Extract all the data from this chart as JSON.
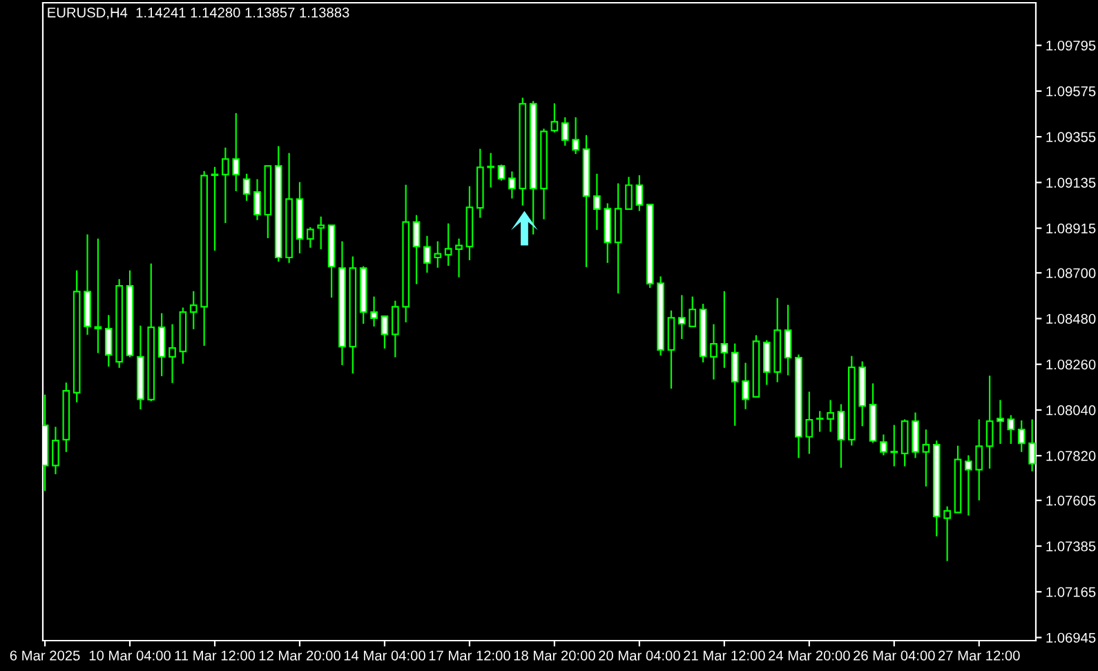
{
  "chart_data": {
    "type": "candlestick",
    "title": "EURUSD,H4  1.14241 1.14280 1.13857 1.13883",
    "categories": [
      "6 Mar 2025",
      null,
      null,
      null,
      null,
      null,
      null,
      null,
      "10 Mar 04:00",
      null,
      null,
      null,
      null,
      null,
      null,
      null,
      "11 Mar 12:00",
      null,
      null,
      null,
      null,
      null,
      null,
      null,
      "12 Mar 20:00",
      null,
      null,
      null,
      null,
      null,
      null,
      null,
      "14 Mar 04:00",
      null,
      null,
      null,
      null,
      null,
      null,
      null,
      "17 Mar 12:00",
      null,
      null,
      null,
      null,
      null,
      null,
      null,
      "18 Mar 20:00",
      null,
      null,
      null,
      null,
      null,
      null,
      null,
      "20 Mar 04:00",
      null,
      null,
      null,
      null,
      null,
      null,
      null,
      "21 Mar 12:00",
      null,
      null,
      null,
      null,
      null,
      null,
      null,
      "24 Mar 20:00",
      null,
      null,
      null,
      null,
      null,
      null,
      null,
      "26 Mar 04:00",
      null,
      null,
      null,
      null,
      null,
      null,
      null,
      "27 Mar 12:00",
      null,
      null,
      null,
      null,
      null
    ],
    "ohlc": [
      [
        1.07966,
        1.08114,
        1.07651,
        1.07773
      ],
      [
        1.07773,
        1.07959,
        1.07731,
        1.07893
      ],
      [
        1.07897,
        1.08172,
        1.07838,
        1.08132
      ],
      [
        1.08123,
        1.08712,
        1.08077,
        1.0861
      ],
      [
        1.0861,
        1.08885,
        1.08402,
        1.08442
      ],
      [
        1.08432,
        1.08865,
        1.08314,
        1.0844
      ],
      [
        1.08431,
        1.08497,
        1.08249,
        1.08305
      ],
      [
        1.08272,
        1.0867,
        1.08243,
        1.08637
      ],
      [
        1.08637,
        1.08712,
        1.08294,
        1.08303
      ],
      [
        1.08296,
        1.08446,
        1.08043,
        1.08092
      ],
      [
        1.0809,
        1.08745,
        1.08083,
        1.08438
      ],
      [
        1.08438,
        1.08506,
        1.08203,
        1.08296
      ],
      [
        1.08296,
        1.08453,
        1.0817,
        1.08338
      ],
      [
        1.08322,
        1.08533,
        1.08263,
        1.08511
      ],
      [
        1.08511,
        1.08612,
        1.08429,
        1.08544
      ],
      [
        1.08537,
        1.0919,
        1.08349,
        1.09168
      ],
      [
        1.0917,
        1.0921,
        1.08807,
        1.09174
      ],
      [
        1.09173,
        1.09303,
        1.0894,
        1.09248
      ],
      [
        1.09248,
        1.09469,
        1.09093,
        1.09173
      ],
      [
        1.09151,
        1.09177,
        1.09047,
        1.0908
      ],
      [
        1.09089,
        1.09151,
        1.08954,
        1.0898
      ],
      [
        1.0898,
        1.09215,
        1.08867,
        1.09215
      ],
      [
        1.09215,
        1.0931,
        1.08754,
        1.08774
      ],
      [
        1.08774,
        1.09277,
        1.08748,
        1.09055
      ],
      [
        1.09055,
        1.09137,
        1.08794,
        1.08863
      ],
      [
        1.08863,
        1.0892,
        1.08821,
        1.08909
      ],
      [
        1.08916,
        1.08971,
        1.08814,
        1.08929
      ],
      [
        1.08929,
        1.08929,
        1.08581,
        1.0873
      ],
      [
        1.08723,
        1.08852,
        1.08256,
        1.08345
      ],
      [
        1.08345,
        1.08779,
        1.08216,
        1.08723
      ],
      [
        1.08723,
        1.08732,
        1.08455,
        1.08511
      ],
      [
        1.08511,
        1.08586,
        1.08442,
        1.08482
      ],
      [
        1.08491,
        1.08491,
        1.08336,
        1.08404
      ],
      [
        1.08404,
        1.08566,
        1.08294,
        1.08537
      ],
      [
        1.08537,
        1.09124,
        1.08462,
        1.08945
      ],
      [
        1.08945,
        1.08978,
        1.08646,
        1.08827
      ],
      [
        1.08825,
        1.08878,
        1.08701,
        1.08748
      ],
      [
        1.08774,
        1.08852,
        1.08725,
        1.08792
      ],
      [
        1.08787,
        1.08938,
        1.08734,
        1.08816
      ],
      [
        1.08814,
        1.08865,
        1.08679,
        1.08832
      ],
      [
        1.08827,
        1.09117,
        1.08761,
        1.09015
      ],
      [
        1.09013,
        1.09297,
        1.08965,
        1.09208
      ],
      [
        1.09208,
        1.09277,
        1.09111,
        1.09212
      ],
      [
        1.09215,
        1.09221,
        1.09144,
        1.09153
      ],
      [
        1.09155,
        1.09188,
        1.09058,
        1.09106
      ],
      [
        1.09106,
        1.09543,
        1.09024,
        1.09514
      ],
      [
        1.09514,
        1.09527,
        1.08885,
        1.09106
      ],
      [
        1.09106,
        1.09394,
        1.08958,
        1.09381
      ],
      [
        1.09385,
        1.09516,
        1.09376,
        1.09427
      ],
      [
        1.09421,
        1.09449,
        1.09312,
        1.09339
      ],
      [
        1.09341,
        1.09449,
        1.09272,
        1.09292
      ],
      [
        1.09295,
        1.09363,
        1.08728,
        1.09069
      ],
      [
        1.09069,
        1.09177,
        1.08907,
        1.09007
      ],
      [
        1.09009,
        1.09035,
        1.08748,
        1.08847
      ],
      [
        1.08847,
        1.09131,
        1.08601,
        1.09009
      ],
      [
        1.09007,
        1.09162,
        1.09007,
        1.09122
      ],
      [
        1.09122,
        1.0917,
        1.08998,
        1.09027
      ],
      [
        1.09029,
        1.09029,
        1.08628,
        1.08648
      ],
      [
        1.0865,
        1.08683,
        1.08302,
        1.08329
      ],
      [
        1.08329,
        1.08519,
        1.08143,
        1.08484
      ],
      [
        1.08484,
        1.08593,
        1.08382,
        1.08455
      ],
      [
        1.08442,
        1.08586,
        1.08442,
        1.08524
      ],
      [
        1.08524,
        1.08551,
        1.08269,
        1.08298
      ],
      [
        1.08296,
        1.08453,
        1.08187,
        1.08358
      ],
      [
        1.08358,
        1.08612,
        1.08243,
        1.08316
      ],
      [
        1.08316,
        1.0836,
        1.07964,
        1.08176
      ],
      [
        1.08179,
        1.08267,
        1.08044,
        1.08092
      ],
      [
        1.08103,
        1.084,
        1.08103,
        1.08371
      ],
      [
        1.08365,
        1.08376,
        1.08161,
        1.08223
      ],
      [
        1.08223,
        1.08579,
        1.08174,
        1.08424
      ],
      [
        1.08424,
        1.08546,
        1.08207,
        1.08292
      ],
      [
        1.08292,
        1.08307,
        1.07809,
        1.07911
      ],
      [
        1.07911,
        1.08128,
        1.07829,
        1.07993
      ],
      [
        1.07997,
        1.08035,
        1.07935,
        1.07999
      ],
      [
        1.07997,
        1.08088,
        1.07935,
        1.08026
      ],
      [
        1.08032,
        1.08068,
        1.07762,
        1.07897
      ],
      [
        1.07897,
        1.083,
        1.07869,
        1.08245
      ],
      [
        1.08245,
        1.08274,
        1.07962,
        1.08059
      ],
      [
        1.08066,
        1.08168,
        1.07882,
        1.07891
      ],
      [
        1.07886,
        1.07922,
        1.07822,
        1.07838
      ],
      [
        1.07836,
        1.07968,
        1.07769,
        1.0784
      ],
      [
        1.07831,
        1.07995,
        1.07769,
        1.07986
      ],
      [
        1.07986,
        1.08028,
        1.07809,
        1.07838
      ],
      [
        1.07838,
        1.07946,
        1.07672,
        1.07873
      ],
      [
        1.07873,
        1.07893,
        1.07432,
        1.07528
      ],
      [
        1.07519,
        1.07576,
        1.07313,
        1.07554
      ],
      [
        1.07547,
        1.07868,
        1.07547,
        1.07802
      ],
      [
        1.07793,
        1.07822,
        1.07532,
        1.07753
      ],
      [
        1.07753,
        1.07995,
        1.07605,
        1.07866
      ],
      [
        1.07866,
        1.08205,
        1.07758,
        1.07986
      ],
      [
        1.07999,
        1.08088,
        1.07877,
        1.07986
      ],
      [
        1.07995,
        1.08015,
        1.07877,
        1.07946
      ],
      [
        1.07946,
        1.0799,
        1.07838,
        1.0788
      ],
      [
        1.0788,
        1.07995,
        1.07745,
        1.07782
      ]
    ],
    "color": "#00ff00",
    "colors": [
      "#ffffff",
      "#000000",
      "#000000",
      "#000000",
      "#ffffff",
      "#000000",
      "#ffffff",
      "#000000",
      "#ffffff",
      "#ffffff",
      "#000000",
      "#ffffff",
      "#000000",
      "#000000",
      "#000000",
      "#000000",
      "#000000",
      "#000000",
      "#ffffff",
      "#ffffff",
      "#ffffff",
      "#000000",
      "#ffffff",
      "#000000",
      "#ffffff",
      "#000000",
      "#000000",
      "#ffffff",
      "#ffffff",
      "#000000",
      "#ffffff",
      "#ffffff",
      "#ffffff",
      "#000000",
      "#000000",
      "#ffffff",
      "#ffffff",
      "#000000",
      "#000000",
      "#000000",
      "#000000",
      "#000000",
      "#000000",
      "#ffffff",
      "#ffffff",
      "#000000",
      "#ffffff",
      "#000000",
      "#000000",
      "#ffffff",
      "#ffffff",
      "#ffffff",
      "#ffffff",
      "#ffffff",
      "#000000",
      "#000000",
      "#ffffff",
      "#ffffff",
      "#ffffff",
      "#000000",
      "#ffffff",
      "#000000",
      "#ffffff",
      "#000000",
      "#ffffff",
      "#ffffff",
      "#ffffff",
      "#000000",
      "#ffffff",
      "#000000",
      "#ffffff",
      "#ffffff",
      "#000000",
      "#000000",
      "#000000",
      "#ffffff",
      "#000000",
      "#ffffff",
      "#ffffff",
      "#ffffff",
      "#000000",
      "#000000",
      "#ffffff",
      "#000000",
      "#ffffff",
      "#000000",
      "#000000",
      "#ffffff",
      "#000000",
      "#000000",
      "#ffffff",
      "#ffffff",
      "#ffffff",
      "#ffffff"
    ],
    "ylim": [
      1.0693,
      1.1
    ],
    "yticks": [
      1.06945,
      1.07165,
      1.07385,
      1.07605,
      {
        "value": 1.0782,
        "label": "1.07820"
      },
      {
        "value": 1.0804,
        "label": "1.08040"
      },
      {
        "value": 1.0826,
        "label": "1.08260"
      },
      {
        "value": 1.0848,
        "label": "1.08480"
      },
      {
        "value": 1.087,
        "label": "1.08700"
      },
      1.08915,
      1.09135,
      1.09355,
      1.09575,
      1.09795
    ]
  }
}
